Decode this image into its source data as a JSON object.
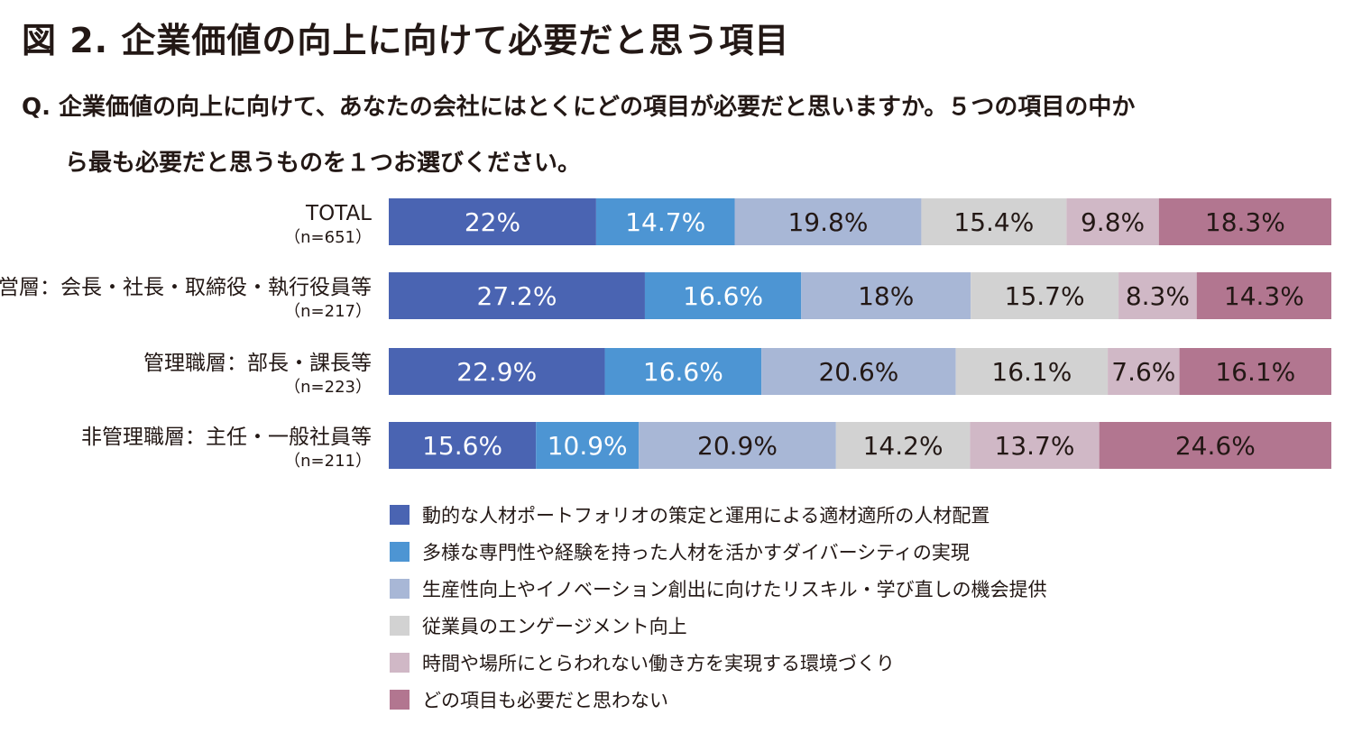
{
  "title": "図 2. 企業価値の向上に向けて必要だと思う項目",
  "question": {
    "line1": "Q. 企業価値の向上に向けて、あなたの会社にはとくにどの項目が必要だと思いますか。５つの項目の中か",
    "line2": "ら最も必要だと思うものを１つお選びください。"
  },
  "chart_data": {
    "type": "bar",
    "orientation": "horizontal",
    "stacked": true,
    "normalized": true,
    "categories": [
      {
        "name": "TOTAL",
        "n": "（n=651）"
      },
      {
        "name": "経営層：会長・社長・取締役・執行役員等",
        "n": "（n=217）"
      },
      {
        "name": "管理職層：部長・課長等",
        "n": "（n=223）"
      },
      {
        "name": "非管理職層：主任・一般社員等",
        "n": "（n=211）"
      }
    ],
    "series": [
      {
        "name": "動的な人材ポートフォリオの策定と運用による適材適所の人材配置",
        "color": "#4a64b2",
        "label_color": "#ffffff",
        "values": [
          22,
          27.2,
          22.9,
          15.6
        ]
      },
      {
        "name": "多様な専門性や経験を持った人材を活かすダイバーシティの実現",
        "color": "#4d95d3",
        "label_color": "#ffffff",
        "values": [
          14.7,
          16.6,
          16.6,
          10.9
        ]
      },
      {
        "name": "生産性向上やイノベーション創出に向けたリスキル・学び直しの機会提供",
        "color": "#a8b7d6",
        "label_color": "#231815",
        "values": [
          19.8,
          18,
          20.6,
          20.9
        ]
      },
      {
        "name": "従業員のエンゲージメント向上",
        "color": "#d2d2d2",
        "label_color": "#231815",
        "values": [
          15.4,
          15.7,
          16.1,
          14.2
        ]
      },
      {
        "name": "時間や場所にとらわれない働き方を実現する環境づくり",
        "color": "#d0b8c6",
        "label_color": "#231815",
        "values": [
          9.8,
          8.3,
          7.6,
          13.7
        ]
      },
      {
        "name": "どの項目も必要だと思わない",
        "color": "#b27690",
        "label_color": "#231815",
        "values": [
          18.3,
          14.3,
          16.1,
          24.6
        ]
      }
    ],
    "value_suffix": "%",
    "legend_position": "bottom",
    "grid": false
  }
}
